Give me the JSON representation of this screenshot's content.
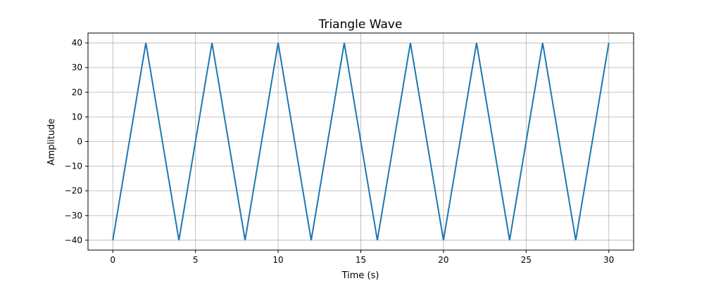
{
  "chart_data": {
    "type": "line",
    "title": "Triangle Wave",
    "xlabel": "Time (s)",
    "ylabel": "Amplitude",
    "xlim": [
      -1.5,
      31.5
    ],
    "ylim": [
      -44,
      44
    ],
    "xticks": [
      0,
      5,
      10,
      15,
      20,
      25,
      30
    ],
    "xtick_labels": [
      "0",
      "5",
      "10",
      "15",
      "20",
      "25",
      "30"
    ],
    "yticks": [
      -40,
      -30,
      -20,
      -10,
      0,
      10,
      20,
      30,
      40
    ],
    "ytick_labels": [
      "−40",
      "−30",
      "−20",
      "−10",
      "0",
      "10",
      "20",
      "30",
      "40"
    ],
    "grid": true,
    "series": [
      {
        "color": "#1f77b4",
        "x": [
          0,
          2,
          4,
          6,
          8,
          10,
          12,
          14,
          16,
          18,
          20,
          22,
          24,
          26,
          28,
          30
        ],
        "y": [
          -40,
          40,
          -40,
          40,
          -40,
          40,
          -40,
          40,
          -40,
          40,
          -40,
          40,
          -40,
          40,
          -40,
          40
        ]
      }
    ]
  }
}
